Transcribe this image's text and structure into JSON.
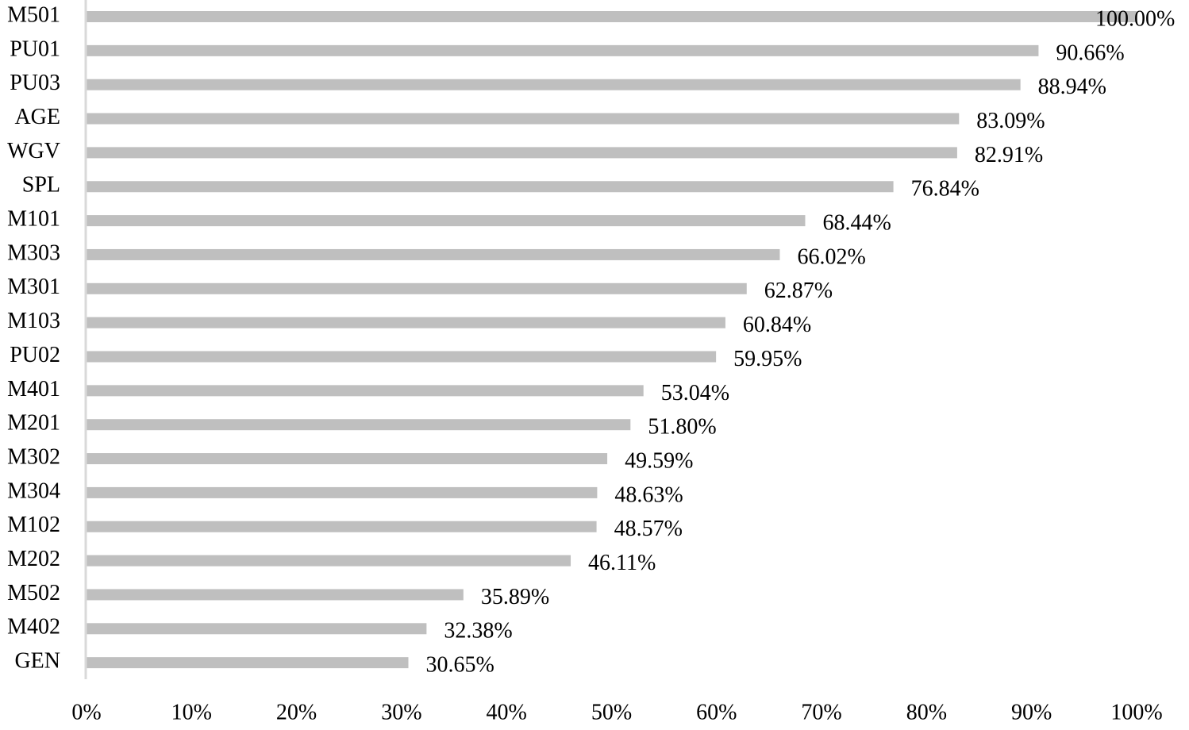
{
  "chart_data": {
    "type": "hbar",
    "categories": [
      "M501",
      "PU01",
      "PU03",
      "AGE",
      "WGV",
      "SPL",
      "M101",
      "M303",
      "M301",
      "M103",
      "PU02",
      "M401",
      "M201",
      "M302",
      "M304",
      "M102",
      "M202",
      "M502",
      "M402",
      "GEN"
    ],
    "values": [
      100.0,
      90.66,
      88.94,
      83.09,
      82.91,
      76.84,
      68.44,
      66.02,
      62.87,
      60.84,
      59.95,
      53.04,
      51.8,
      49.59,
      48.63,
      48.57,
      46.11,
      35.89,
      32.38,
      30.65
    ],
    "value_labels": [
      "100.00%",
      "90.66%",
      "88.94%",
      "83.09%",
      "82.91%",
      "76.84%",
      "68.44%",
      "66.02%",
      "62.87%",
      "60.84%",
      "59.95%",
      "53.04%",
      "51.80%",
      "49.59%",
      "48.63%",
      "48.57%",
      "46.11%",
      "35.89%",
      "32.38%",
      "30.65%"
    ],
    "color": "#bfbfbf",
    "xlim": [
      0,
      100
    ],
    "xticks": [
      {
        "value": 0,
        "label": "0%"
      },
      {
        "value": 10,
        "label": "10%"
      },
      {
        "value": 20,
        "label": "20%"
      },
      {
        "value": 30,
        "label": "30%"
      },
      {
        "value": 40,
        "label": "40%"
      },
      {
        "value": 50,
        "label": "50%"
      },
      {
        "value": 60,
        "label": "60%"
      },
      {
        "value": 70,
        "label": "70%"
      },
      {
        "value": 80,
        "label": "80%"
      },
      {
        "value": 90,
        "label": "90%"
      },
      {
        "value": 100,
        "label": "100%"
      }
    ],
    "grid": false
  }
}
